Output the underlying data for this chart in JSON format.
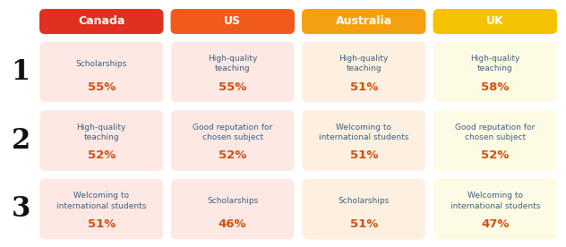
{
  "columns": [
    "Canada",
    "US",
    "Australia",
    "UK"
  ],
  "header_colors": [
    "#E03020",
    "#F05A1A",
    "#F5A010",
    "#F5C200"
  ],
  "cell_bg_colors_by_col": [
    "#FDE8E4",
    "#FDE8E4",
    "#FEF0E0",
    "#FEFBE4"
  ],
  "rows": [
    [
      {
        "label": "Scholarships",
        "value": "55%"
      },
      {
        "label": "High-quality\nteaching",
        "value": "55%"
      },
      {
        "label": "High-quality\nteaching",
        "value": "51%"
      },
      {
        "label": "High-quality\nteaching",
        "value": "58%"
      }
    ],
    [
      {
        "label": "High-quality\nteaching",
        "value": "52%"
      },
      {
        "label": "Good reputation for\nchosen subject",
        "value": "52%"
      },
      {
        "label": "Welcoming to\ninternational students",
        "value": "51%"
      },
      {
        "label": "Good reputation for\nchosen subject",
        "value": "52%"
      }
    ],
    [
      {
        "label": "Welcoming to\ninternational students",
        "value": "51%"
      },
      {
        "label": "Scholarships",
        "value": "46%"
      },
      {
        "label": "Scholarships",
        "value": "51%"
      },
      {
        "label": "Welcoming to\ninternational students",
        "value": "47%"
      }
    ]
  ],
  "row_numbers": [
    "1",
    "2",
    "3"
  ],
  "label_color": "#3A6080",
  "value_color": "#D05010",
  "row_num_color": "#111111",
  "header_text_color": "#FFFFFF",
  "bg_color": "#FFFFFF",
  "figw": 6.32,
  "figh": 2.76,
  "dpi": 100
}
